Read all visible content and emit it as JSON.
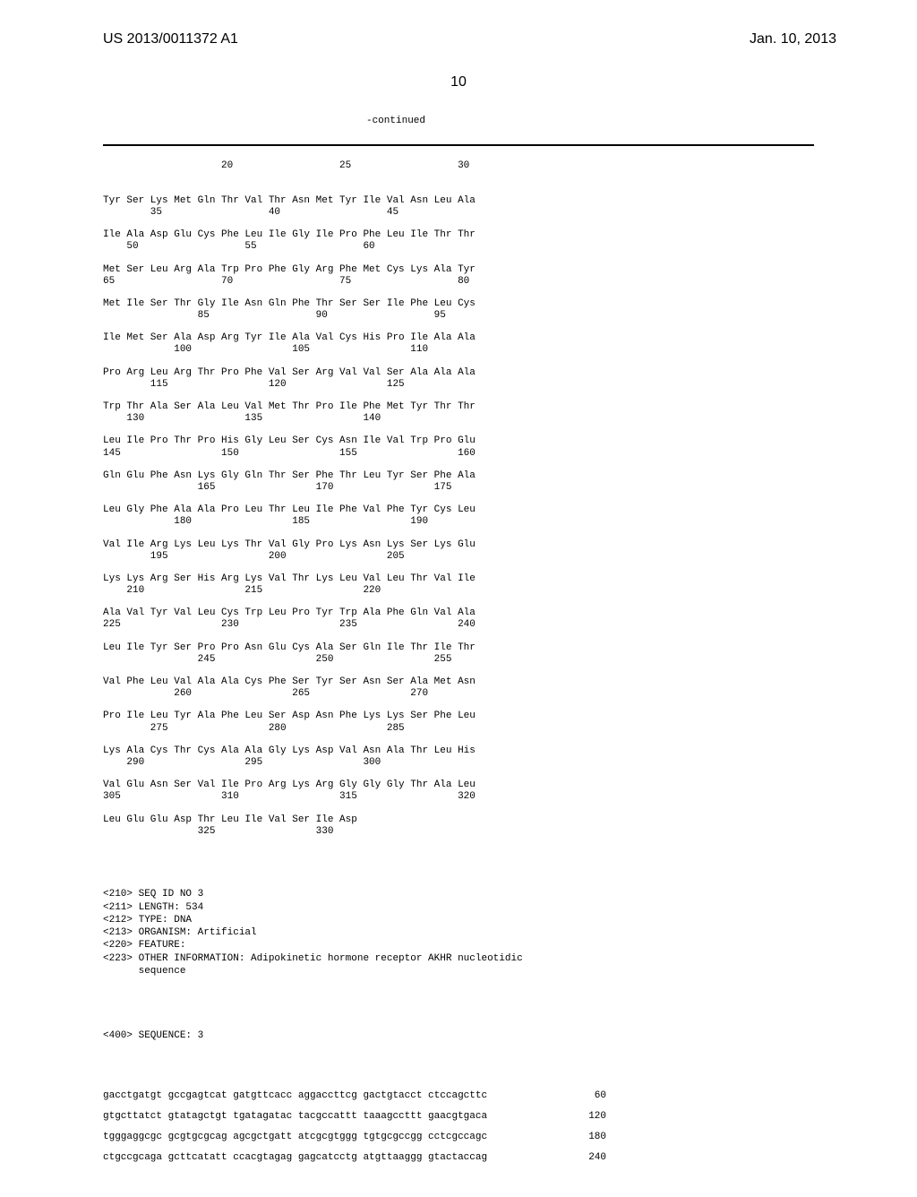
{
  "header": {
    "pub_number": "US 2013/0011372 A1",
    "pub_date": "Jan. 10, 2013"
  },
  "page_number": "10",
  "continued_label": "-continued",
  "position_header": "                    20                  25                  30",
  "sequence_blocks": [
    {
      "aa": "Tyr Ser Lys Met Gln Thr Val Thr Asn Met Tyr Ile Val Asn Leu Ala",
      "pos": "        35                  40                  45"
    },
    {
      "aa": "Ile Ala Asp Glu Cys Phe Leu Ile Gly Ile Pro Phe Leu Ile Thr Thr",
      "pos": "    50                  55                  60"
    },
    {
      "aa": "Met Ser Leu Arg Ala Trp Pro Phe Gly Arg Phe Met Cys Lys Ala Tyr",
      "pos": "65                  70                  75                  80"
    },
    {
      "aa": "Met Ile Ser Thr Gly Ile Asn Gln Phe Thr Ser Ser Ile Phe Leu Cys",
      "pos": "                85                  90                  95"
    },
    {
      "aa": "Ile Met Ser Ala Asp Arg Tyr Ile Ala Val Cys His Pro Ile Ala Ala",
      "pos": "            100                 105                 110"
    },
    {
      "aa": "Pro Arg Leu Arg Thr Pro Phe Val Ser Arg Val Val Ser Ala Ala Ala",
      "pos": "        115                 120                 125"
    },
    {
      "aa": "Trp Thr Ala Ser Ala Leu Val Met Thr Pro Ile Phe Met Tyr Thr Thr",
      "pos": "    130                 135                 140"
    },
    {
      "aa": "Leu Ile Pro Thr Pro His Gly Leu Ser Cys Asn Ile Val Trp Pro Glu",
      "pos": "145                 150                 155                 160"
    },
    {
      "aa": "Gln Glu Phe Asn Lys Gly Gln Thr Ser Phe Thr Leu Tyr Ser Phe Ala",
      "pos": "                165                 170                 175"
    },
    {
      "aa": "Leu Gly Phe Ala Ala Pro Leu Thr Leu Ile Phe Val Phe Tyr Cys Leu",
      "pos": "            180                 185                 190"
    },
    {
      "aa": "Val Ile Arg Lys Leu Lys Thr Val Gly Pro Lys Asn Lys Ser Lys Glu",
      "pos": "        195                 200                 205"
    },
    {
      "aa": "Lys Lys Arg Ser His Arg Lys Val Thr Lys Leu Val Leu Thr Val Ile",
      "pos": "    210                 215                 220"
    },
    {
      "aa": "Ala Val Tyr Val Leu Cys Trp Leu Pro Tyr Trp Ala Phe Gln Val Ala",
      "pos": "225                 230                 235                 240"
    },
    {
      "aa": "Leu Ile Tyr Ser Pro Pro Asn Glu Cys Ala Ser Gln Ile Thr Ile Thr",
      "pos": "                245                 250                 255"
    },
    {
      "aa": "Val Phe Leu Val Ala Ala Cys Phe Ser Tyr Ser Asn Ser Ala Met Asn",
      "pos": "            260                 265                 270"
    },
    {
      "aa": "Pro Ile Leu Tyr Ala Phe Leu Ser Asp Asn Phe Lys Lys Ser Phe Leu",
      "pos": "        275                 280                 285"
    },
    {
      "aa": "Lys Ala Cys Thr Cys Ala Ala Gly Lys Asp Val Asn Ala Thr Leu His",
      "pos": "    290                 295                 300"
    },
    {
      "aa": "Val Glu Asn Ser Val Ile Pro Arg Lys Arg Gly Gly Gly Thr Ala Leu",
      "pos": "305                 310                 315                 320"
    },
    {
      "aa": "Leu Glu Glu Asp Thr Leu Ile Val Ser Ile Asp",
      "pos": "                325                 330"
    }
  ],
  "metadata": [
    "<210> SEQ ID NO 3",
    "<211> LENGTH: 534",
    "<212> TYPE: DNA",
    "<213> ORGANISM: Artificial",
    "<220> FEATURE:",
    "<223> OTHER INFORMATION: Adipokinetic hormone receptor AKHR nucleotidic",
    "      sequence"
  ],
  "sequence_label": "<400> SEQUENCE: 3",
  "dna_rows": [
    {
      "seq": "gacctgatgt gccgagtcat gatgttcacc aggaccttcg gactgtacct ctccagcttc",
      "pos": "60"
    },
    {
      "seq": "gtgcttatct gtatagctgt tgatagatac tacgccattt taaagccttt gaacgtgaca",
      "pos": "120"
    },
    {
      "seq": "tgggaggcgc gcgtgcgcag agcgctgatt atcgcgtggg tgtgcgccgg cctcgccagc",
      "pos": "180"
    },
    {
      "seq": "ctgccgcaga gcttcatatt ccacgtagag gagcatcctg atgttaaggg gtactaccag",
      "pos": "240"
    }
  ]
}
